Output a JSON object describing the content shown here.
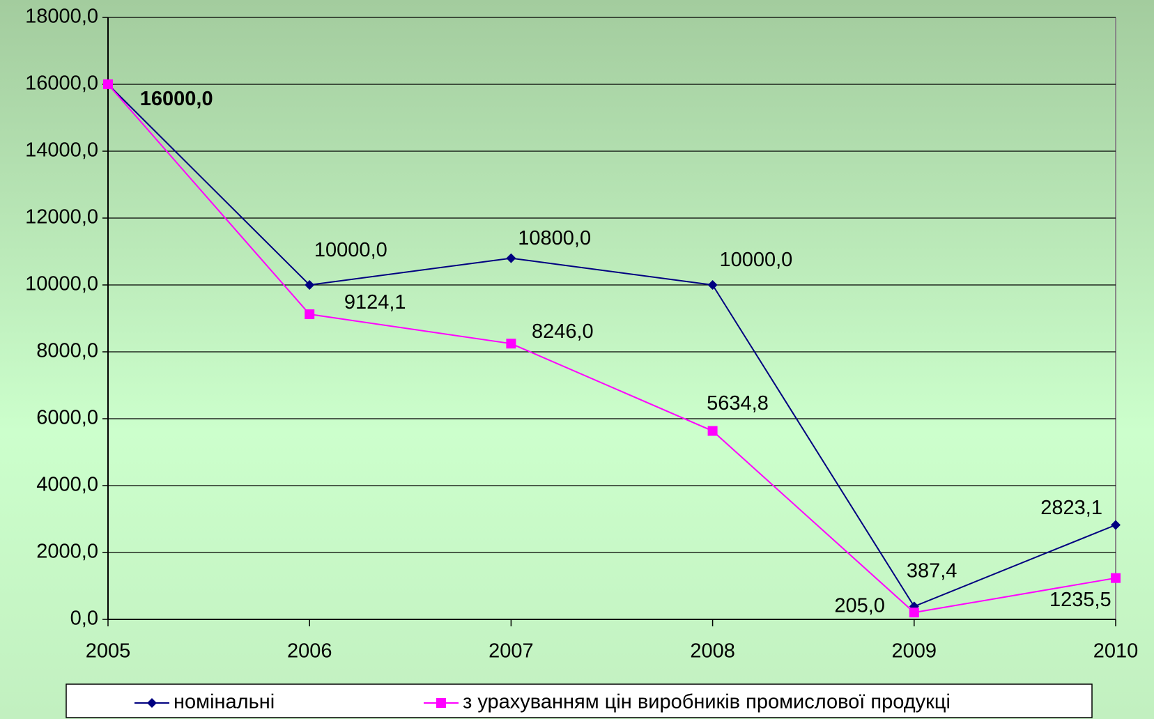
{
  "chart_data": {
    "type": "line",
    "categories": [
      "2005",
      "2006",
      "2007",
      "2008",
      "2009",
      "2010"
    ],
    "series": [
      {
        "name": "номінальні",
        "color": "#000080",
        "marker": "diamond",
        "values": [
          16000.0,
          10000.0,
          10800.0,
          10000.0,
          387.4,
          2823.1
        ],
        "value_labels": [
          "16000,0",
          "10000,0",
          "10800,0",
          "10000,0",
          "387,4",
          "2823,1"
        ]
      },
      {
        "name": "з урахуванням цін виробників промислової продукці",
        "color": "#ff00ff",
        "marker": "square",
        "values": [
          16000.0,
          9124.1,
          8246.0,
          5634.8,
          205.0,
          1235.5
        ],
        "value_labels": [
          null,
          "9124,1",
          "8246,0",
          "5634,8",
          "205,0",
          "1235,5"
        ]
      }
    ],
    "ylim": [
      0,
      18000
    ],
    "yticks": [
      {
        "value": 0,
        "label": "0,0"
      },
      {
        "value": 2000,
        "label": "2000,0"
      },
      {
        "value": 4000,
        "label": "4000,0"
      },
      {
        "value": 6000,
        "label": "6000,0"
      },
      {
        "value": 8000,
        "label": "8000,0"
      },
      {
        "value": 10000,
        "label": "10000,0"
      },
      {
        "value": 12000,
        "label": "12000,0"
      },
      {
        "value": 14000,
        "label": "14000,0"
      },
      {
        "value": 16000,
        "label": "16000,0"
      },
      {
        "value": 18000,
        "label": "18000,0"
      }
    ],
    "grid": true,
    "legend": "bottom"
  }
}
